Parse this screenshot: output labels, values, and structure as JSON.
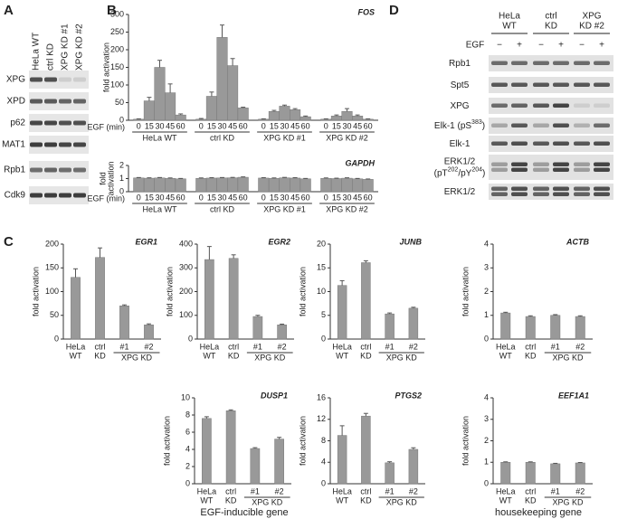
{
  "panel_labels": [
    "A",
    "B",
    "C",
    "D"
  ],
  "captions": [
    "EGF-inducible gene",
    "housekeeping gene"
  ],
  "blot_a": {
    "columns": [
      "HeLa WT",
      "ctrl KD",
      "XPG KD #1",
      "XPG KD #2"
    ],
    "rows": [
      "XPG",
      "XPD",
      "p62",
      "MAT1",
      "Rpb1",
      "Cdk9"
    ]
  },
  "blot_d": {
    "columns": [
      [
        "HeLa",
        "WT"
      ],
      [
        "ctrl",
        "KD"
      ],
      [
        "XPG",
        "KD #2"
      ]
    ],
    "treatment_label": "EGF",
    "treatment": [
      "−",
      "+",
      "−",
      "+",
      "−",
      "+"
    ],
    "rows": [
      [
        [
          "Rpb1"
        ]
      ],
      [
        [
          "Spt5"
        ]
      ],
      [
        [
          "XPG"
        ]
      ],
      [
        [
          "Elk-1 (pS",
          "383",
          ")"
        ]
      ],
      [
        [
          "Elk-1"
        ]
      ],
      [
        [
          "ERK1/2"
        ],
        [
          "(pT",
          "202",
          "/pY",
          "204",
          ")"
        ]
      ],
      [
        [
          "ERK1/2"
        ]
      ]
    ]
  },
  "chart_data": [
    {
      "type": "bar",
      "title": "FOS",
      "y_label": "fold activation",
      "x_label": "EGF (min)",
      "categories": [
        "0",
        "15",
        "30",
        "45",
        "60",
        "0",
        "15",
        "30",
        "45",
        "60",
        "0",
        "15",
        "30",
        "45",
        "60",
        "0",
        "15",
        "30",
        "45",
        "60"
      ],
      "groups": [
        "HeLa WT",
        "ctrl KD",
        "XPG KD #1",
        "XPG KD #2"
      ],
      "values": [
        3,
        55,
        150,
        78,
        15,
        3,
        68,
        235,
        155,
        35,
        3,
        25,
        40,
        30,
        10,
        3,
        12,
        25,
        12,
        3
      ],
      "errors": [
        1,
        10,
        20,
        25,
        3,
        2,
        12,
        35,
        20,
        2,
        1,
        3,
        3,
        3,
        2,
        1,
        3,
        8,
        3,
        1
      ],
      "ylim": [
        0,
        300
      ],
      "yticks": [
        0,
        50,
        100,
        150,
        200,
        250,
        300
      ],
      "color": "#999999"
    },
    {
      "type": "bar",
      "title": "GAPDH",
      "y_label": [
        "fold",
        "activation"
      ],
      "x_label": "EGF (min)",
      "categories": [
        "0",
        "15",
        "30",
        "45",
        "60",
        "0",
        "15",
        "30",
        "45",
        "60",
        "0",
        "15",
        "30",
        "45",
        "60",
        "0",
        "15",
        "30",
        "45",
        "60"
      ],
      "groups": [
        "HeLa WT",
        "ctrl KD",
        "XPG KD #1",
        "XPG KD #2"
      ],
      "values": [
        1.05,
        1.03,
        1.05,
        1.02,
        0.98,
        1.02,
        1.04,
        1.05,
        1.06,
        1.1,
        1.04,
        1.02,
        1.06,
        1.04,
        0.98,
        1.02,
        1.0,
        1.03,
        0.98,
        0.94
      ],
      "errors": [
        0.03,
        0.03,
        0.03,
        0.03,
        0.03,
        0.03,
        0.03,
        0.03,
        0.03,
        0.03,
        0.03,
        0.03,
        0.03,
        0.03,
        0.03,
        0.03,
        0.03,
        0.03,
        0.03,
        0.03
      ],
      "ylim": [
        0,
        2
      ],
      "yticks": [
        0,
        1,
        2
      ],
      "color": "#999999"
    },
    {
      "type": "bar",
      "title": "EGR1",
      "y_label": "fold activation",
      "categories": [
        [
          "HeLa",
          "WT"
        ],
        [
          "ctrl",
          "KD"
        ],
        [
          "#1"
        ],
        [
          "#2"
        ]
      ],
      "group_label": "XPG KD",
      "values": [
        130,
        172,
        70,
        30
      ],
      "errors": [
        18,
        20,
        2,
        2
      ],
      "ylim": [
        0,
        200
      ],
      "yticks": [
        0,
        50,
        100,
        150,
        200
      ],
      "color": "#999999"
    },
    {
      "type": "bar",
      "title": "EGR2",
      "y_label": "fold activation",
      "categories": [
        [
          "HeLa",
          "WT"
        ],
        [
          "ctrl",
          "KD"
        ],
        [
          "#1"
        ],
        [
          "#2"
        ]
      ],
      "group_label": "XPG KD",
      "values": [
        335,
        340,
        95,
        60
      ],
      "errors": [
        55,
        15,
        5,
        3
      ],
      "ylim": [
        0,
        400
      ],
      "yticks": [
        0,
        100,
        200,
        300,
        400
      ],
      "color": "#999999"
    },
    {
      "type": "bar",
      "title": "JUNB",
      "y_label": "fold activation",
      "categories": [
        [
          "HeLa",
          "WT"
        ],
        [
          "ctrl",
          "KD"
        ],
        [
          "#1"
        ],
        [
          "#2"
        ]
      ],
      "group_label": "XPG KD",
      "values": [
        11.3,
        16.1,
        5.3,
        6.5
      ],
      "errors": [
        1,
        0.4,
        0.2,
        0.2
      ],
      "ylim": [
        0,
        20
      ],
      "yticks": [
        0,
        5,
        10,
        15,
        20
      ],
      "color": "#999999"
    },
    {
      "type": "bar",
      "title": "ACTB",
      "y_label": "fold activation",
      "categories": [
        [
          "HeLa",
          "WT"
        ],
        [
          "ctrl",
          "KD"
        ],
        [
          "#1"
        ],
        [
          "#2"
        ]
      ],
      "group_label": "XPG KD",
      "values": [
        1.1,
        0.95,
        1.0,
        0.95
      ],
      "errors": [
        0.03,
        0.03,
        0.03,
        0.03
      ],
      "ylim": [
        0,
        4
      ],
      "yticks": [
        0,
        1,
        2,
        3,
        4
      ],
      "color": "#999999"
    },
    {
      "type": "bar",
      "title": "DUSP1",
      "y_label": "fold activation",
      "categories": [
        [
          "HeLa",
          "WT"
        ],
        [
          "ctrl",
          "KD"
        ],
        [
          "#1"
        ],
        [
          "#2"
        ]
      ],
      "group_label": "XPG KD",
      "values": [
        7.6,
        8.5,
        4.1,
        5.2
      ],
      "errors": [
        0.2,
        0.1,
        0.1,
        0.2
      ],
      "ylim": [
        0,
        10
      ],
      "yticks": [
        0,
        2,
        4,
        6,
        8,
        10
      ],
      "color": "#999999"
    },
    {
      "type": "bar",
      "title": "PTGS2",
      "y_label": "fold activation",
      "categories": [
        [
          "HeLa",
          "WT"
        ],
        [
          "ctrl",
          "KD"
        ],
        [
          "#1"
        ],
        [
          "#2"
        ]
      ],
      "group_label": "XPG KD",
      "values": [
        9,
        12.6,
        3.9,
        6.4
      ],
      "errors": [
        1.8,
        0.5,
        0.2,
        0.3
      ],
      "ylim": [
        0,
        16
      ],
      "yticks": [
        0,
        4,
        8,
        12,
        16
      ],
      "color": "#999999"
    },
    {
      "type": "bar",
      "title": "EEF1A1",
      "y_label": "fold activation",
      "categories": [
        [
          "HeLa",
          "WT"
        ],
        [
          "ctrl",
          "KD"
        ],
        [
          "#1"
        ],
        [
          "#2"
        ]
      ],
      "group_label": "XPG KD",
      "values": [
        1.0,
        1.0,
        0.93,
        0.97
      ],
      "errors": [
        0.02,
        0.02,
        0.02,
        0.02
      ],
      "ylim": [
        0,
        4
      ],
      "yticks": [
        0,
        1,
        2,
        3,
        4
      ],
      "color": "#999999"
    }
  ]
}
